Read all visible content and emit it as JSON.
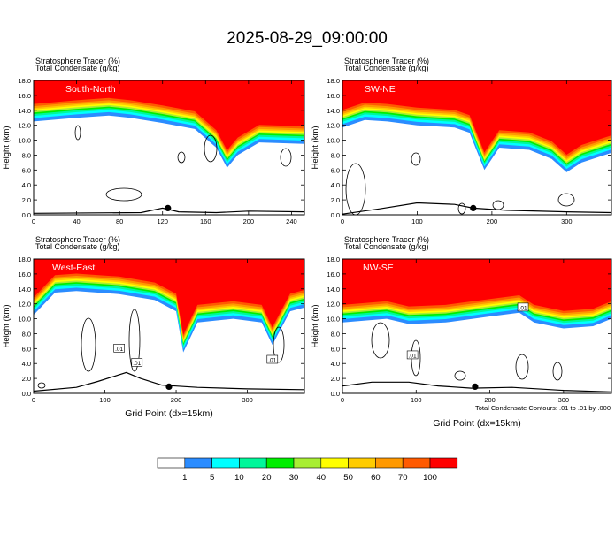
{
  "title": "2025-08-29_09:00:00",
  "footer_note": "Total Condensate Contours: .01 to .01 by .000",
  "colorbar": {
    "levels": [
      "1",
      "5",
      "10",
      "20",
      "30",
      "40",
      "50",
      "60",
      "70",
      "100"
    ],
    "colors": [
      "#ffffff",
      "#2b8cff",
      "#00ffff",
      "#00f79a",
      "#00ee00",
      "#a8ee33",
      "#ffff00",
      "#ffcc00",
      "#ff9900",
      "#ff5a00",
      "#ff0000"
    ]
  },
  "chart_data": [
    {
      "type": "heatmap",
      "panel": "South-North",
      "field_labels": [
        "Stratosphere Tracer   (%)",
        "Total Condensate   (g/kg)"
      ],
      "ylabel": "Height (km)",
      "xlabel": "",
      "ylim": [
        0,
        18
      ],
      "xlim": [
        0,
        252
      ],
      "xticks": [
        "0",
        "40",
        "80",
        "120",
        "160",
        "200",
        "240"
      ],
      "yticks": [
        "0.0",
        "2.0",
        "4.0",
        "6.0",
        "8.0",
        "10.0",
        "12.0",
        "14.0",
        "16.0",
        "18.0"
      ],
      "tropopause_km": [
        [
          0,
          14.0
        ],
        [
          40,
          14.5
        ],
        [
          70,
          14.8
        ],
        [
          90,
          14.5
        ],
        [
          120,
          13.8
        ],
        [
          150,
          13.0
        ],
        [
          170,
          10.5
        ],
        [
          180,
          7.8
        ],
        [
          190,
          9.5
        ],
        [
          210,
          11.2
        ],
        [
          252,
          11.0
        ]
      ],
      "terrain_km": [
        [
          0,
          0.2
        ],
        [
          100,
          0.3
        ],
        [
          120,
          0.9
        ],
        [
          135,
          0.4
        ],
        [
          170,
          0.3
        ],
        [
          200,
          0.5
        ],
        [
          252,
          0.4
        ]
      ],
      "contour_labels": []
    },
    {
      "type": "heatmap",
      "panel": "SW-NE",
      "field_labels": [
        "Stratosphere Tracer   (%)",
        "Total Condensate   (g/kg)"
      ],
      "ylabel": "",
      "xlabel": "",
      "ylim": [
        0,
        18
      ],
      "xlim": [
        0,
        360
      ],
      "xticks": [
        "0",
        "100",
        "200",
        "300"
      ],
      "yticks": [
        "0.0",
        "2.0",
        "4.0",
        "6.0",
        "8.0",
        "10.0",
        "12.0",
        "14.0",
        "16.0",
        "18.0"
      ],
      "tropopause_km": [
        [
          0,
          13.2
        ],
        [
          30,
          14.2
        ],
        [
          60,
          14.0
        ],
        [
          100,
          13.5
        ],
        [
          150,
          13.2
        ],
        [
          170,
          12.5
        ],
        [
          190,
          7.5
        ],
        [
          210,
          10.5
        ],
        [
          250,
          10.2
        ],
        [
          280,
          9.0
        ],
        [
          300,
          7.2
        ],
        [
          320,
          8.5
        ],
        [
          360,
          9.8
        ]
      ],
      "terrain_km": [
        [
          0,
          0.1
        ],
        [
          50,
          0.8
        ],
        [
          100,
          1.6
        ],
        [
          150,
          1.4
        ],
        [
          175,
          0.9
        ],
        [
          220,
          0.6
        ],
        [
          300,
          0.4
        ],
        [
          360,
          0.3
        ]
      ],
      "contour_labels": []
    },
    {
      "type": "heatmap",
      "panel": "West-East",
      "field_labels": [
        "Stratosphere Tracer   (%)",
        "Total Condensate   (g/kg)"
      ],
      "ylabel": "Height (km)",
      "xlabel": "Grid Point (dx=15km)",
      "ylim": [
        0,
        18
      ],
      "xlim": [
        0,
        380
      ],
      "xticks": [
        "0",
        "100",
        "200",
        "300"
      ],
      "yticks": [
        "0.0",
        "2.0",
        "4.0",
        "6.0",
        "8.0",
        "10.0",
        "12.0",
        "14.0",
        "16.0",
        "18.0"
      ],
      "tropopause_km": [
        [
          0,
          12.0
        ],
        [
          30,
          15.0
        ],
        [
          60,
          15.2
        ],
        [
          120,
          14.8
        ],
        [
          170,
          14.0
        ],
        [
          200,
          12.5
        ],
        [
          210,
          7.0
        ],
        [
          230,
          11.0
        ],
        [
          280,
          11.5
        ],
        [
          320,
          11.0
        ],
        [
          335,
          8.0
        ],
        [
          360,
          12.5
        ],
        [
          380,
          13.0
        ]
      ],
      "terrain_km": [
        [
          0,
          0.3
        ],
        [
          60,
          0.8
        ],
        [
          90,
          1.6
        ],
        [
          130,
          2.8
        ],
        [
          150,
          2.0
        ],
        [
          180,
          1.1
        ],
        [
          230,
          0.8
        ],
        [
          300,
          0.6
        ],
        [
          380,
          0.5
        ]
      ],
      "contour_labels": [
        ".01",
        ".01",
        ".01"
      ]
    },
    {
      "type": "heatmap",
      "panel": "NW-SE",
      "field_labels": [
        "Stratosphere Tracer   (%)",
        "Total Condensate   (g/kg)"
      ],
      "ylabel": "",
      "xlabel": "Grid Point (dx=15km)",
      "ylim": [
        0,
        18
      ],
      "xlim": [
        0,
        365
      ],
      "xticks": [
        "0",
        "100",
        "200",
        "300"
      ],
      "yticks": [
        "0.0",
        "2.0",
        "4.0",
        "6.0",
        "8.0",
        "10.0",
        "12.0",
        "14.0",
        "16.0",
        "18.0"
      ],
      "tropopause_km": [
        [
          0,
          11.0
        ],
        [
          60,
          11.5
        ],
        [
          90,
          10.8
        ],
        [
          140,
          11.0
        ],
        [
          200,
          11.8
        ],
        [
          240,
          12.3
        ],
        [
          260,
          11.0
        ],
        [
          300,
          10.2
        ],
        [
          340,
          10.5
        ],
        [
          365,
          11.5
        ]
      ],
      "terrain_km": [
        [
          0,
          1.0
        ],
        [
          40,
          1.5
        ],
        [
          90,
          1.5
        ],
        [
          130,
          1.0
        ],
        [
          175,
          0.7
        ],
        [
          230,
          0.8
        ],
        [
          300,
          0.4
        ],
        [
          365,
          0.2
        ]
      ],
      "contour_labels": [
        ".01",
        ".01"
      ]
    }
  ]
}
